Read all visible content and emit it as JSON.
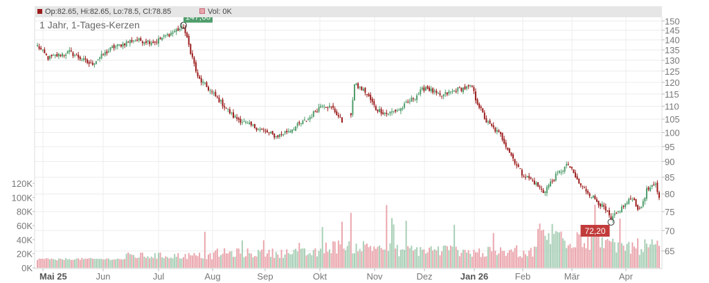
{
  "legend": {
    "ohlc": "Op:82.65, Hi:82.65, Lo:78.5, Cl:78.85",
    "volume": "Vol: 0K"
  },
  "chart_data": {
    "type": "candlestick",
    "title": "1 Jahr, 1-Tages-Kerzen",
    "price_axis": {
      "side": "right",
      "scale": "log",
      "range": [
        61,
        152
      ],
      "ticks": [
        65,
        70,
        75,
        80,
        85,
        90,
        95,
        100,
        105,
        110,
        115,
        120,
        125,
        130,
        135,
        140,
        145,
        150
      ]
    },
    "volume_axis": {
      "side": "left",
      "range": [
        0,
        125000
      ],
      "ticks": [
        0,
        20000,
        40000,
        60000,
        80000,
        100000,
        120000
      ],
      "tick_labels": [
        "0K",
        "20K",
        "40K",
        "60K",
        "80K",
        "100K",
        "120K"
      ]
    },
    "x_axis": {
      "labels": [
        "Mai 25",
        "Jun",
        "Jul",
        "Aug",
        "Sep",
        "Okt",
        "Nov",
        "Dez",
        "Jan 26",
        "Feb",
        "Mär",
        "Apr"
      ],
      "bold": [
        "Mai 25",
        "Jan 26"
      ]
    },
    "grid": true,
    "markers": [
      {
        "label": "147,60",
        "value": 147.6,
        "type": "high",
        "color": "#4f9d6c"
      },
      {
        "label": "72,20",
        "value": 72.2,
        "type": "low",
        "color": "#c23b3b"
      }
    ],
    "colors": {
      "up": "#4f9d6c",
      "down": "#9b1c1c",
      "vol_up": "#a8cfb6",
      "vol_down": "#eaa6ad"
    },
    "close_path": [
      [
        0,
        137
      ],
      [
        6,
        131
      ],
      [
        18,
        134
      ],
      [
        30,
        128
      ],
      [
        42,
        136
      ],
      [
        54,
        140
      ],
      [
        66,
        139
      ],
      [
        78,
        145
      ],
      [
        82,
        146.5
      ],
      [
        90,
        122
      ],
      [
        100,
        114
      ],
      [
        110,
        106
      ],
      [
        118,
        103
      ],
      [
        126,
        101
      ],
      [
        134,
        98.5
      ],
      [
        142,
        101
      ],
      [
        152,
        105
      ],
      [
        160,
        111
      ],
      [
        166,
        109
      ],
      [
        172,
        103
      ],
      [
        176,
        107
      ],
      [
        178,
        119
      ],
      [
        184,
        116
      ],
      [
        190,
        109
      ],
      [
        196,
        107
      ],
      [
        204,
        109
      ],
      [
        212,
        114
      ],
      [
        218,
        118
      ],
      [
        226,
        114
      ],
      [
        236,
        117
      ],
      [
        244,
        118
      ],
      [
        246,
        113
      ],
      [
        252,
        104
      ],
      [
        260,
        99
      ],
      [
        266,
        92
      ],
      [
        272,
        86
      ],
      [
        278,
        84
      ],
      [
        284,
        80.5
      ],
      [
        292,
        86
      ],
      [
        298,
        89
      ],
      [
        304,
        83
      ],
      [
        310,
        80
      ],
      [
        318,
        76
      ],
      [
        322,
        72.8
      ],
      [
        328,
        76
      ],
      [
        334,
        79
      ],
      [
        338,
        75
      ],
      [
        342,
        81
      ],
      [
        347,
        82.6
      ],
      [
        349,
        78.85
      ]
    ],
    "volume_series": [
      {
        "range": [
          0,
          50
        ],
        "values": [
          11000,
          14000,
          8000
        ]
      },
      {
        "range": [
          50,
          100
        ],
        "values": [
          12000,
          22000,
          64000
        ]
      },
      {
        "range": [
          100,
          160
        ],
        "values": [
          14000,
          28000,
          42000
        ]
      },
      {
        "range": [
          160,
          200
        ],
        "values": [
          20000,
          40000,
          92000
        ]
      },
      {
        "range": [
          200,
          240
        ],
        "values": [
          16000,
          34000,
          70000
        ]
      },
      {
        "range": [
          240,
          280
        ],
        "values": [
          14000,
          30000,
          52000
        ]
      },
      {
        "range": [
          280,
          320
        ],
        "values": [
          24000,
          68000,
          94000
        ]
      },
      {
        "range": [
          320,
          350
        ],
        "values": [
          18000,
          42000,
          86000
        ]
      }
    ]
  }
}
